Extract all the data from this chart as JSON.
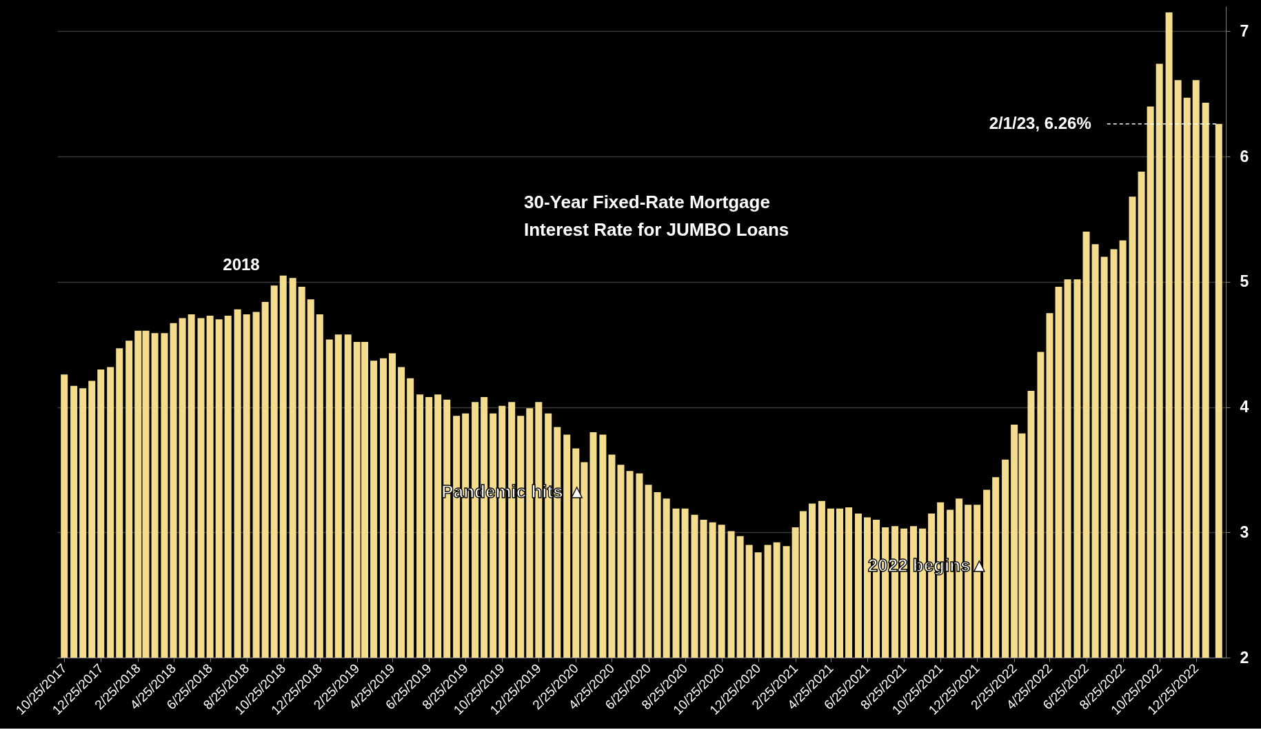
{
  "chart_data": {
    "type": "bar",
    "title": "30-Year Fixed-Rate Mortgage\nInterest Rate for JUMBO Loans",
    "x": [
      "2017-10-25",
      "2017-11-10",
      "2017-11-25",
      "2017-12-10",
      "2017-12-25",
      "2018-01-10",
      "2018-01-25",
      "2018-02-10",
      "2018-02-25",
      "2018-03-10",
      "2018-03-25",
      "2018-04-10",
      "2018-04-25",
      "2018-05-10",
      "2018-05-25",
      "2018-06-10",
      "2018-06-25",
      "2018-07-10",
      "2018-07-25",
      "2018-08-10",
      "2018-08-25",
      "2018-09-10",
      "2018-09-25",
      "2018-10-10",
      "2018-10-25",
      "2018-11-10",
      "2018-11-25",
      "2018-12-10",
      "2018-12-25",
      "2019-01-10",
      "2019-01-25",
      "2019-02-10",
      "2019-02-25",
      "2019-03-10",
      "2019-03-25",
      "2019-04-10",
      "2019-04-25",
      "2019-05-10",
      "2019-05-25",
      "2019-06-10",
      "2019-06-25",
      "2019-07-10",
      "2019-07-25",
      "2019-08-10",
      "2019-08-25",
      "2019-09-10",
      "2019-09-25",
      "2019-10-10",
      "2019-10-25",
      "2019-11-10",
      "2019-11-25",
      "2019-12-10",
      "2019-12-25",
      "2020-01-10",
      "2020-01-25",
      "2020-02-10",
      "2020-02-25",
      "2020-03-10",
      "2020-03-25",
      "2020-04-10",
      "2020-04-25",
      "2020-05-10",
      "2020-05-25",
      "2020-06-10",
      "2020-06-25",
      "2020-07-10",
      "2020-07-25",
      "2020-08-10",
      "2020-08-25",
      "2020-09-10",
      "2020-09-25",
      "2020-10-10",
      "2020-10-25",
      "2020-11-10",
      "2020-11-25",
      "2020-12-10",
      "2020-12-25",
      "2021-01-10",
      "2021-01-25",
      "2021-02-10",
      "2021-02-25",
      "2021-03-10",
      "2021-03-25",
      "2021-04-10",
      "2021-04-25",
      "2021-05-10",
      "2021-05-25",
      "2021-06-10",
      "2021-06-25",
      "2021-07-10",
      "2021-07-25",
      "2021-08-10",
      "2021-08-25",
      "2021-09-10",
      "2021-09-25",
      "2021-10-10",
      "2021-10-25",
      "2021-11-10",
      "2021-11-25",
      "2021-12-10",
      "2021-12-25",
      "2022-01-10",
      "2022-01-25",
      "2022-02-10",
      "2022-02-25",
      "2022-03-10",
      "2022-03-25",
      "2022-04-10",
      "2022-04-25",
      "2022-05-10",
      "2022-05-25",
      "2022-06-10",
      "2022-06-25",
      "2022-07-10",
      "2022-07-25",
      "2022-08-10",
      "2022-08-25",
      "2022-09-10",
      "2022-09-25",
      "2022-10-10",
      "2022-10-25",
      "2022-11-10",
      "2022-11-25",
      "2022-12-10",
      "2022-12-25",
      "2023-01-10",
      "2023-02-01"
    ],
    "values": [
      4.26,
      4.17,
      4.15,
      4.21,
      4.3,
      4.32,
      4.47,
      4.53,
      4.61,
      4.61,
      4.59,
      4.59,
      4.67,
      4.71,
      4.74,
      4.71,
      4.73,
      4.7,
      4.73,
      4.78,
      4.74,
      4.76,
      4.84,
      4.97,
      5.05,
      5.03,
      4.96,
      4.86,
      4.74,
      4.54,
      4.58,
      4.58,
      4.52,
      4.52,
      4.37,
      4.39,
      4.43,
      4.32,
      4.23,
      4.1,
      4.08,
      4.1,
      4.06,
      3.93,
      3.95,
      4.04,
      4.08,
      3.95,
      4.01,
      4.04,
      3.93,
      3.99,
      4.04,
      3.95,
      3.84,
      3.78,
      3.67,
      3.56,
      3.8,
      3.78,
      3.62,
      3.54,
      3.49,
      3.47,
      3.38,
      3.32,
      3.27,
      3.19,
      3.19,
      3.14,
      3.1,
      3.08,
      3.06,
      3.01,
      2.97,
      2.9,
      2.84,
      2.9,
      2.92,
      2.89,
      3.04,
      3.17,
      3.23,
      3.25,
      3.19,
      3.19,
      3.2,
      3.15,
      3.12,
      3.1,
      3.04,
      3.05,
      3.03,
      3.05,
      3.03,
      3.15,
      3.24,
      3.18,
      3.27,
      3.22,
      3.22,
      3.34,
      3.44,
      3.58,
      3.86,
      3.79,
      4.13,
      4.44,
      4.75,
      4.96,
      5.02,
      5.02,
      5.4,
      5.3,
      5.2,
      5.26,
      5.33,
      5.68,
      5.88,
      6.4,
      6.74,
      7.15,
      6.61,
      6.47,
      6.61,
      6.43,
      6.26
    ],
    "color": "#f4dc8e",
    "xlim": [
      "2017-10-19",
      "2023-02-07"
    ],
    "ylim": [
      2,
      7.2
    ],
    "xticks": [
      {
        "value": "2017-10-25",
        "label": "10/25/2017"
      },
      {
        "value": "2017-12-25",
        "label": "12/25/2017"
      },
      {
        "value": "2018-02-25",
        "label": "2/25/2018"
      },
      {
        "value": "2018-04-25",
        "label": "4/25/2018"
      },
      {
        "value": "2018-06-25",
        "label": "6/25/2018"
      },
      {
        "value": "2018-08-25",
        "label": "8/25/2018"
      },
      {
        "value": "2018-10-25",
        "label": "10/25/2018"
      },
      {
        "value": "2018-12-25",
        "label": "12/25/2018"
      },
      {
        "value": "2019-02-25",
        "label": "2/25/2019"
      },
      {
        "value": "2019-04-25",
        "label": "4/25/2019"
      },
      {
        "value": "2019-06-25",
        "label": "6/25/2019"
      },
      {
        "value": "2019-08-25",
        "label": "8/25/2019"
      },
      {
        "value": "2019-10-25",
        "label": "10/25/2019"
      },
      {
        "value": "2019-12-25",
        "label": "12/25/2019"
      },
      {
        "value": "2020-02-25",
        "label": "2/25/2020"
      },
      {
        "value": "2020-04-25",
        "label": "4/25/2020"
      },
      {
        "value": "2020-06-25",
        "label": "6/25/2020"
      },
      {
        "value": "2020-08-25",
        "label": "8/25/2020"
      },
      {
        "value": "2020-10-25",
        "label": "10/25/2020"
      },
      {
        "value": "2020-12-25",
        "label": "12/25/2020"
      },
      {
        "value": "2021-02-25",
        "label": "2/25/2021"
      },
      {
        "value": "2021-04-25",
        "label": "4/25/2021"
      },
      {
        "value": "2021-06-25",
        "label": "6/25/2021"
      },
      {
        "value": "2021-08-25",
        "label": "8/25/2021"
      },
      {
        "value": "2021-10-25",
        "label": "10/25/2021"
      },
      {
        "value": "2021-12-25",
        "label": "12/25/2021"
      },
      {
        "value": "2022-02-25",
        "label": "2/25/2022"
      },
      {
        "value": "2022-04-25",
        "label": "4/25/2022"
      },
      {
        "value": "2022-06-25",
        "label": "6/25/2022"
      },
      {
        "value": "2022-08-25",
        "label": "8/25/2022"
      },
      {
        "value": "2022-10-25",
        "label": "10/25/2022"
      },
      {
        "value": "2022-12-25",
        "label": "12/25/2022"
      }
    ],
    "yticks": [
      2,
      3,
      4,
      5,
      6,
      7
    ],
    "grid": "y",
    "annotations": [
      "2018",
      {
        "text": "Pandemic hits ▲",
        "x": "2020-03-01",
        "y": 3.32
      },
      {
        "text": "2022 begins▲",
        "x": "2022-01-01",
        "y": 2.73
      },
      {
        "text": "2/1/23, 6.26%",
        "x": "2023-02-01",
        "y": 6.26
      }
    ]
  }
}
